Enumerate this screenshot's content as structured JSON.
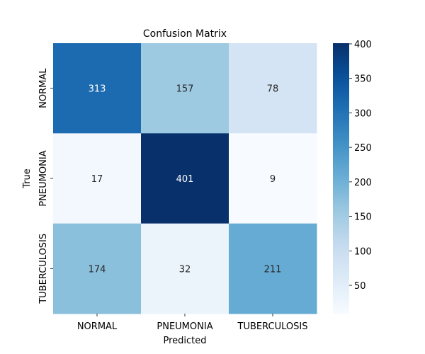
{
  "chart_data": {
    "type": "heatmap",
    "title": "Confusion Matrix",
    "xlabel": "Predicted",
    "ylabel": "True",
    "x_categories": [
      "NORMAL",
      "PNEUMONIA",
      "TUBERCULOSIS"
    ],
    "y_categories": [
      "NORMAL",
      "PNEUMONIA",
      "TUBERCULOSIS"
    ],
    "values": [
      [
        313,
        157,
        78
      ],
      [
        17,
        401,
        9
      ],
      [
        174,
        32,
        211
      ]
    ],
    "colorbar": {
      "colormap": "Blues",
      "range": [
        9,
        401
      ],
      "ticks": [
        50,
        100,
        150,
        200,
        250,
        300,
        350,
        400
      ]
    },
    "grid": false
  }
}
